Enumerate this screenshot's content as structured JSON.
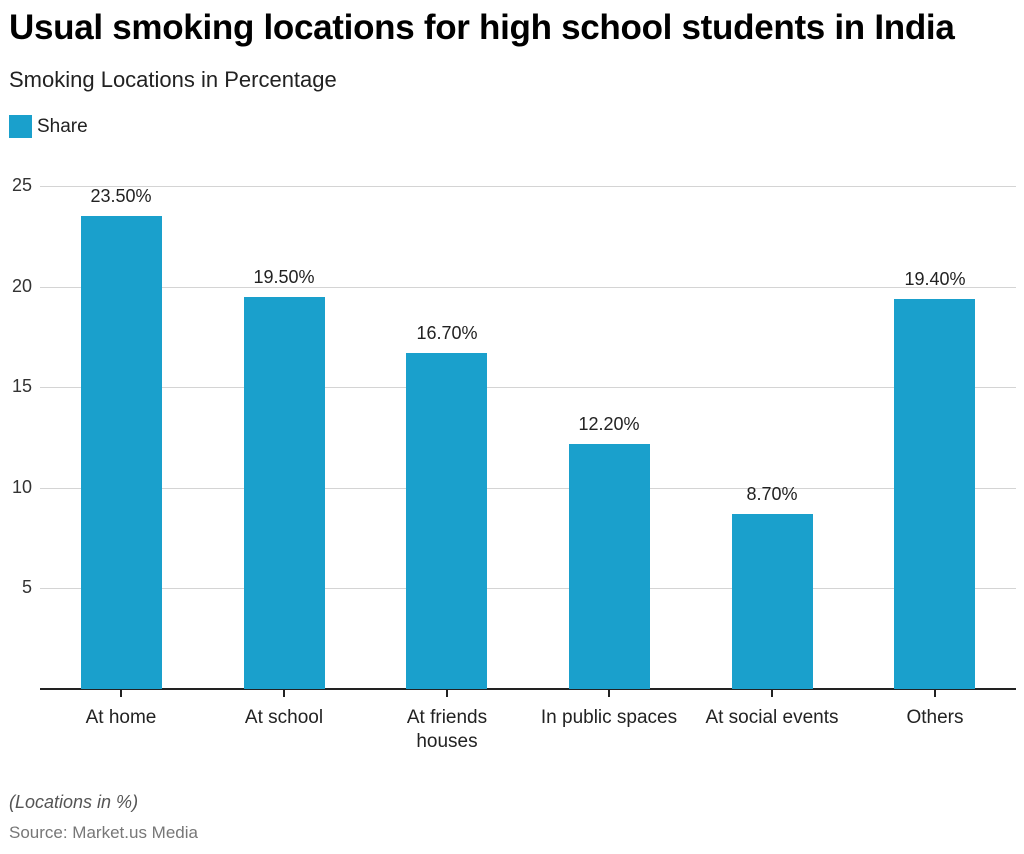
{
  "header": {
    "title": "Usual smoking locations for high school students in India",
    "subtitle": "Smoking Locations in Percentage"
  },
  "legend": {
    "items": [
      {
        "label": "Share",
        "color": "#1aa0cc"
      }
    ]
  },
  "footer": {
    "note": "(Locations in %)",
    "source": "Source: Market.us Media"
  },
  "colors": {
    "bar": "#1aa0cc",
    "grid": "#d4d4d4",
    "axis": "#222222"
  },
  "chart_data": {
    "type": "bar",
    "title": "Usual smoking locations for high school students in India",
    "subtitle": "Smoking Locations in Percentage",
    "xlabel": "",
    "ylabel": "",
    "categories": [
      "At home",
      "At school",
      "At friends houses",
      "In public spaces",
      "At social events",
      "Others"
    ],
    "category_display": [
      [
        "At home"
      ],
      [
        "At school"
      ],
      [
        "At friends",
        "houses"
      ],
      [
        "In public spaces"
      ],
      [
        "At social events"
      ],
      [
        "Others"
      ]
    ],
    "series": [
      {
        "name": "Share",
        "color": "#1aa0cc",
        "values": [
          23.5,
          19.5,
          16.7,
          12.2,
          8.7,
          19.4
        ]
      }
    ],
    "data_labels": [
      "23.50%",
      "19.50%",
      "16.70%",
      "12.20%",
      "8.70%",
      "19.40%"
    ],
    "yticks": [
      5,
      10,
      15,
      20,
      25
    ],
    "ylim": [
      0,
      25
    ],
    "grid": true,
    "legend_position": "top-left",
    "note": "(Locations in %)",
    "source": "Source: Market.us Media"
  }
}
